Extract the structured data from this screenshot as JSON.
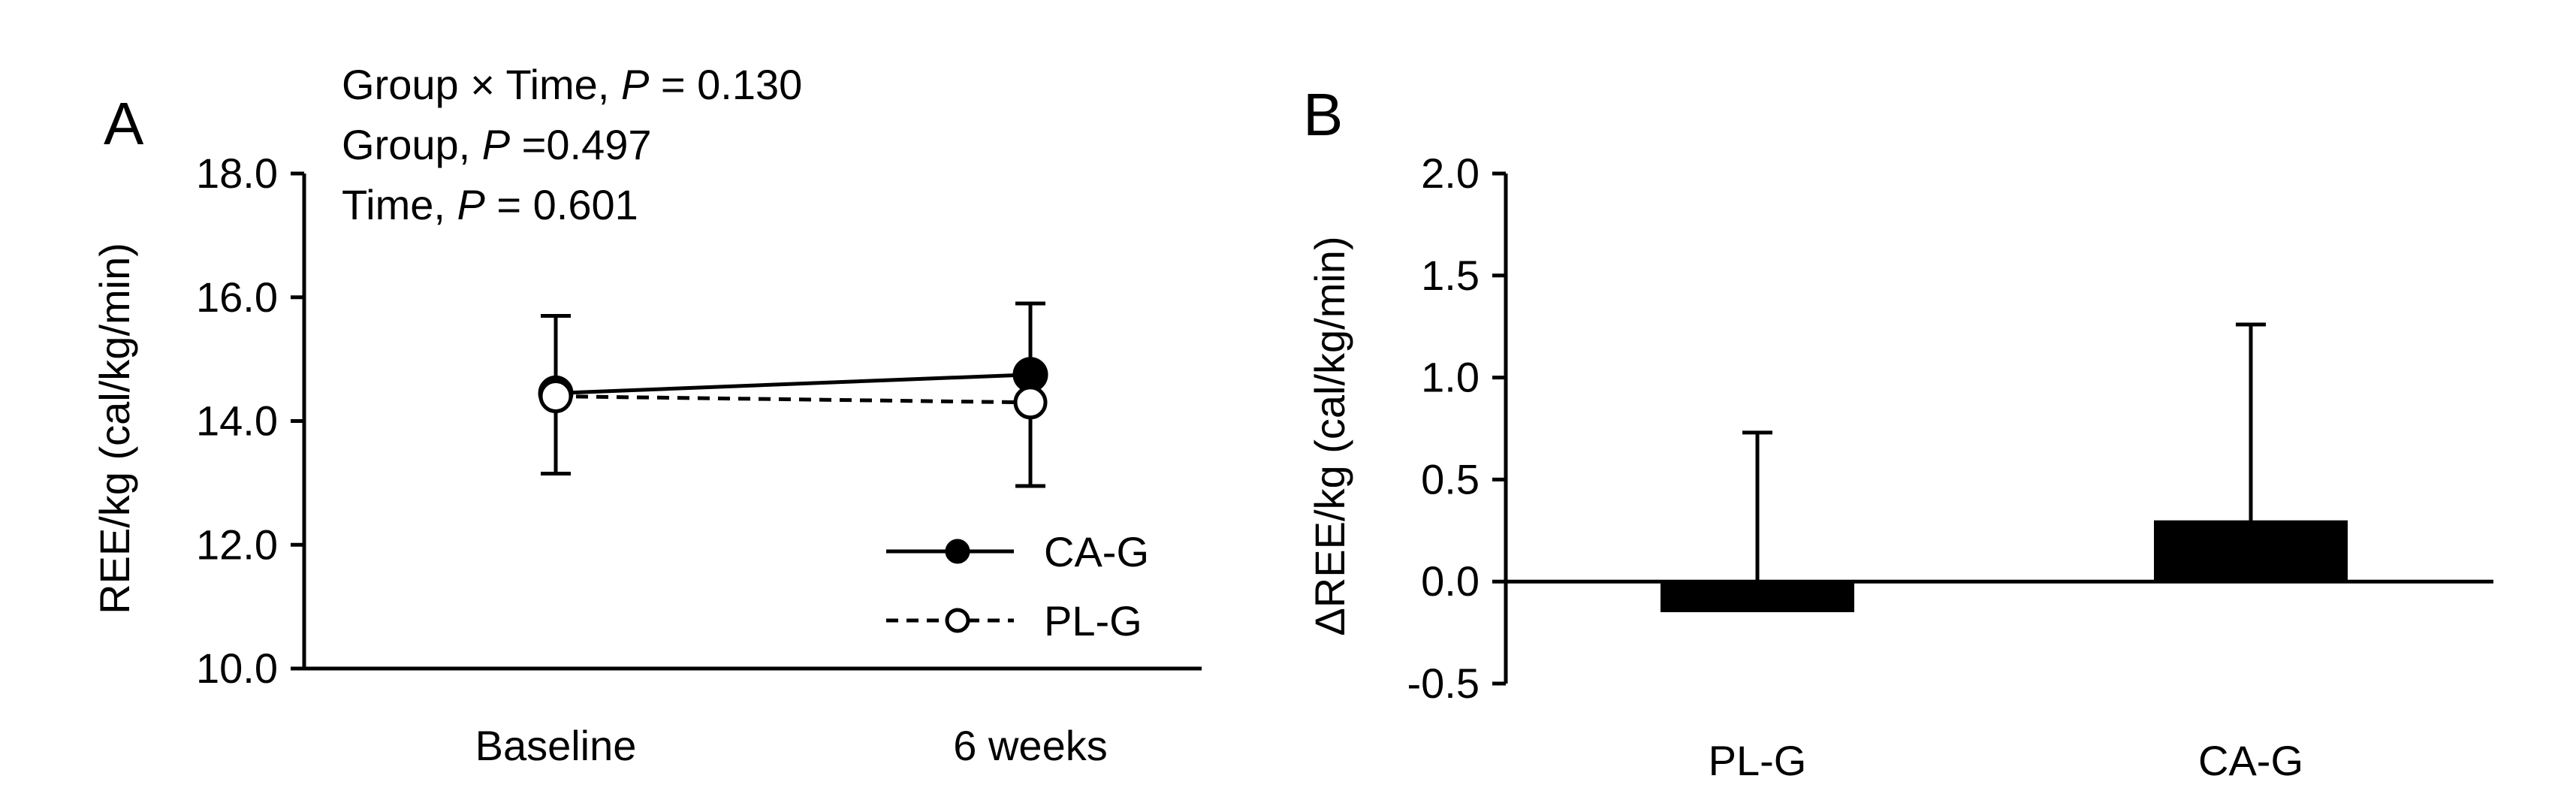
{
  "chart_data": [
    {
      "type": "line",
      "panel_label": "A",
      "ylabel": "REE/kg (cal/kg/min)",
      "xlabel": "",
      "ylim": [
        10.0,
        18.0
      ],
      "yticks": [
        10.0,
        12.0,
        14.0,
        16.0,
        18.0
      ],
      "ytick_labels": [
        "10.0",
        "12.0",
        "14.0",
        "16.0",
        "18.0"
      ],
      "categories": [
        "Baseline",
        "6 weeks"
      ],
      "stats": {
        "line1_prefix": "Group × Time, ",
        "line1_p": "P",
        "line1_suffix": " = 0.130",
        "line2_prefix": "Group, ",
        "line2_p": "P",
        "line2_suffix": " =0.497",
        "line3_prefix": "Time, ",
        "line3_p": "P",
        "line3_suffix": " = 0.601"
      },
      "series": [
        {
          "name": "CA-G",
          "style": "solid-filled",
          "values": [
            14.45,
            14.75
          ],
          "error_upper": [
            15.7,
            15.9
          ],
          "error_lower": [
            13.15,
            12.95
          ]
        },
        {
          "name": "PL-G",
          "style": "dashed-open",
          "values": [
            14.4,
            14.3
          ],
          "error_upper": [
            15.7,
            15.9
          ],
          "error_lower": [
            13.15,
            12.95
          ]
        }
      ],
      "legend": [
        "CA-G",
        "PL-G"
      ],
      "legend_position": "lower-right"
    },
    {
      "type": "bar",
      "panel_label": "B",
      "ylabel": "ΔREE/kg (cal/kg/min)",
      "xlabel": "",
      "ylim": [
        -0.5,
        2.0
      ],
      "yticks": [
        -0.5,
        0.0,
        0.5,
        1.0,
        1.5,
        2.0
      ],
      "ytick_labels": [
        "-0.5",
        "0.0",
        "0.5",
        "1.0",
        "1.5",
        "2.0"
      ],
      "categories": [
        "PL-G",
        "CA-G"
      ],
      "values": [
        -0.15,
        0.3
      ],
      "error_upper": [
        0.73,
        1.26
      ],
      "bar_color": "#000000"
    }
  ]
}
